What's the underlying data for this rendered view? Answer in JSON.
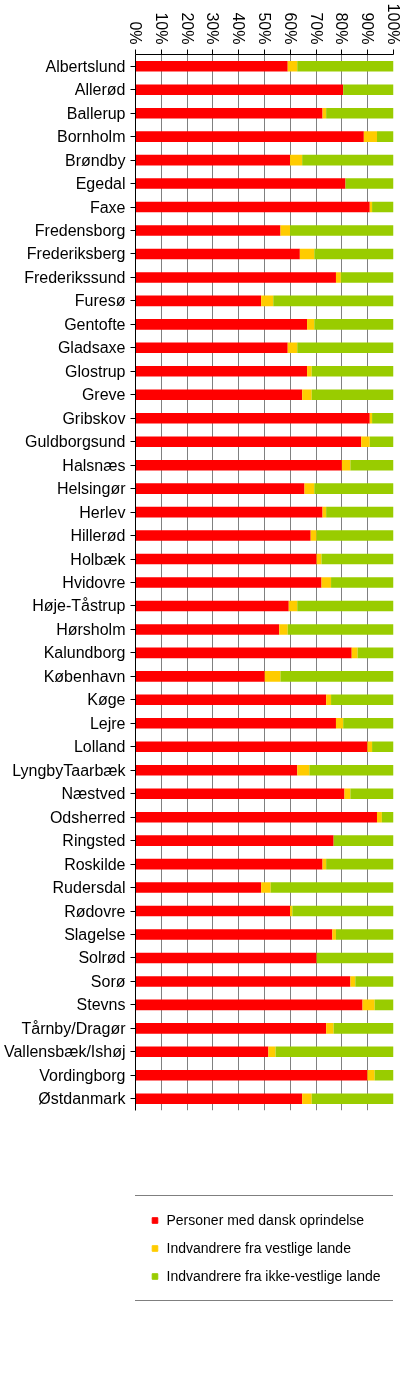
{
  "chart_data": {
    "type": "bar",
    "orientation": "horizontal",
    "stacked": true,
    "categories": [
      "Albertslund",
      "Allerød",
      "Ballerup",
      "Bornholm",
      "Brøndby",
      "Egedal",
      "Faxe",
      "Fredensborg",
      "Frederiksberg",
      "Frederikssund",
      "Furesø",
      "Gentofte",
      "Gladsaxe",
      "Glostrup",
      "Greve",
      "Gribskov",
      "Guldborgsund",
      "Halsnæs",
      "Helsingør",
      "Herlev",
      "Hillerød",
      "Holbæk",
      "Hvidovre",
      "Høje-Tåstrup",
      "Hørsholm",
      "Kalundborg",
      "København",
      "Køge",
      "Lejre",
      "Lolland",
      "LyngbyTaarbæk",
      "Næstved",
      "Odsherred",
      "Ringsted",
      "Roskilde",
      "Rudersdal",
      "Rødovre",
      "Slagelse",
      "Solrød",
      "Sorø",
      "Stevns",
      "Tårnby/Dragør",
      "Vallensbæk/Ishøj",
      "Vordingborg",
      "Østdanmark"
    ],
    "series": [
      {
        "name": "Personer med dansk oprindelse",
        "color": "#ff0000",
        "values": [
          59.0,
          80.5,
          72.5,
          88.5,
          59.9,
          81.4,
          90.8,
          56.2,
          63.7,
          77.7,
          48.7,
          66.5,
          59.0,
          66.5,
          64.6,
          90.8,
          87.5,
          80.0,
          65.5,
          72.5,
          67.9,
          70.2,
          72.1,
          59.4,
          55.7,
          83.8,
          50.1,
          73.9,
          77.7,
          89.9,
          62.7,
          81.0,
          93.6,
          76.8,
          72.5,
          48.7,
          59.9,
          76.3,
          70.2,
          83.3,
          88.0,
          73.9,
          51.5,
          89.9,
          64.6
        ]
      },
      {
        "name": "Indvandrere fra vestlige lande",
        "color": "#ffcc00",
        "values": [
          3.7,
          0,
          1.4,
          5.1,
          4.7,
          0,
          0.9,
          3.7,
          5.6,
          1.9,
          4.7,
          2.8,
          3.7,
          1.8,
          3.7,
          0.9,
          3.3,
          3.3,
          3.8,
          1.4,
          2.3,
          1.9,
          3.7,
          3.3,
          3.3,
          2.3,
          6.1,
          1.9,
          2.8,
          1.8,
          4.7,
          2.3,
          1.9,
          0,
          1.4,
          3.7,
          0.9,
          1.4,
          0,
          1.9,
          4.7,
          2.9,
          2.8,
          2.8,
          3.7
        ]
      },
      {
        "name": "Indvandrere fra ikke-vestlige lande",
        "color": "#99cc00",
        "values": [
          37.3,
          19.5,
          26.1,
          6.4,
          35.4,
          18.6,
          8.3,
          40.1,
          30.7,
          20.4,
          46.6,
          30.7,
          37.3,
          31.7,
          31.7,
          8.3,
          9.2,
          16.7,
          30.7,
          26.1,
          29.8,
          27.9,
          24.2,
          37.3,
          41.0,
          13.9,
          43.8,
          24.2,
          19.5,
          8.3,
          32.6,
          16.7,
          4.5,
          23.2,
          26.1,
          47.6,
          39.2,
          22.3,
          29.8,
          14.8,
          7.3,
          23.2,
          45.7,
          7.3,
          31.7
        ]
      }
    ],
    "xlim": [
      0,
      100
    ],
    "xticks": [
      {
        "value": 0,
        "label": "0%"
      },
      {
        "value": 10,
        "label": "10%"
      },
      {
        "value": 20,
        "label": "20%"
      },
      {
        "value": 30,
        "label": "30%"
      },
      {
        "value": 40,
        "label": "40%"
      },
      {
        "value": 50,
        "label": "50%"
      },
      {
        "value": 60,
        "label": "60%"
      },
      {
        "value": 70,
        "label": "70%"
      },
      {
        "value": 80,
        "label": "80%"
      },
      {
        "value": 90,
        "label": "90%"
      },
      {
        "value": 100,
        "label": "100%"
      }
    ],
    "grid": "x",
    "legend": "bottom"
  }
}
